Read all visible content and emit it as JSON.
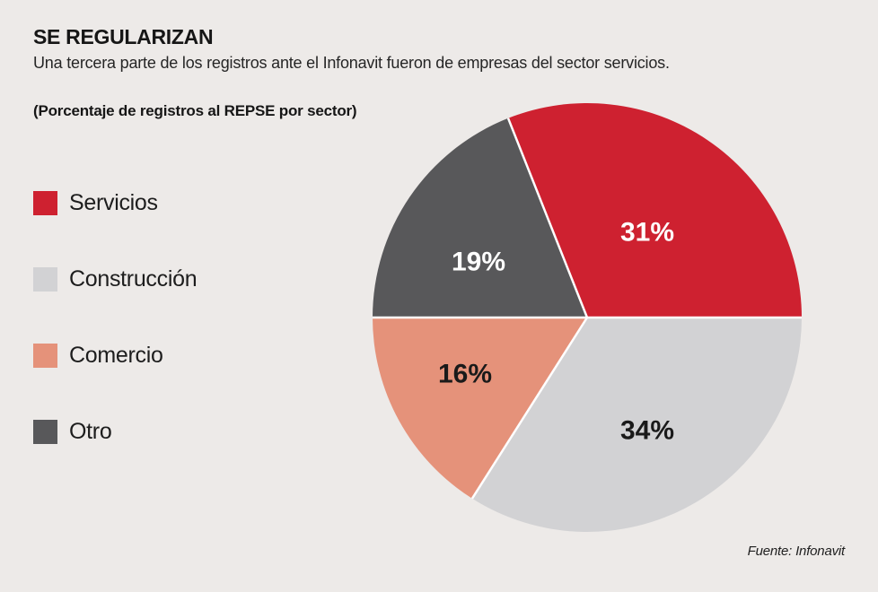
{
  "header": {
    "title": "SE REGULARIZAN",
    "subtitle": "Una tercera parte de los registros ante el Infonavit fueron de empresas del sector servicios.",
    "note": "(Porcentaje de registros al REPSE por sector)"
  },
  "source": "Fuente: Infonavit",
  "colors": {
    "background": "#edeae8",
    "divider": "#ffffff",
    "text": "#1a1a1a"
  },
  "chart_data": {
    "type": "pie",
    "title": "(Porcentaje de registros al REPSE por sector)",
    "unit": "%",
    "legend_position": "left",
    "start_angle_deg_from_east": 0,
    "direction": "counterclockwise",
    "sectors": [
      {
        "label": "Servicios",
        "value": 31,
        "color": "#ce2130",
        "label_color": "#ffffff"
      },
      {
        "label": "Construcción",
        "value": 34,
        "color": "#d2d2d4",
        "label_color": "#1a1a1a"
      },
      {
        "label": "Comercio",
        "value": 16,
        "color": "#e5927a",
        "label_color": "#1a1a1a"
      },
      {
        "label": "Otro",
        "value": 19,
        "color": "#58585a",
        "label_color": "#ffffff"
      }
    ]
  }
}
